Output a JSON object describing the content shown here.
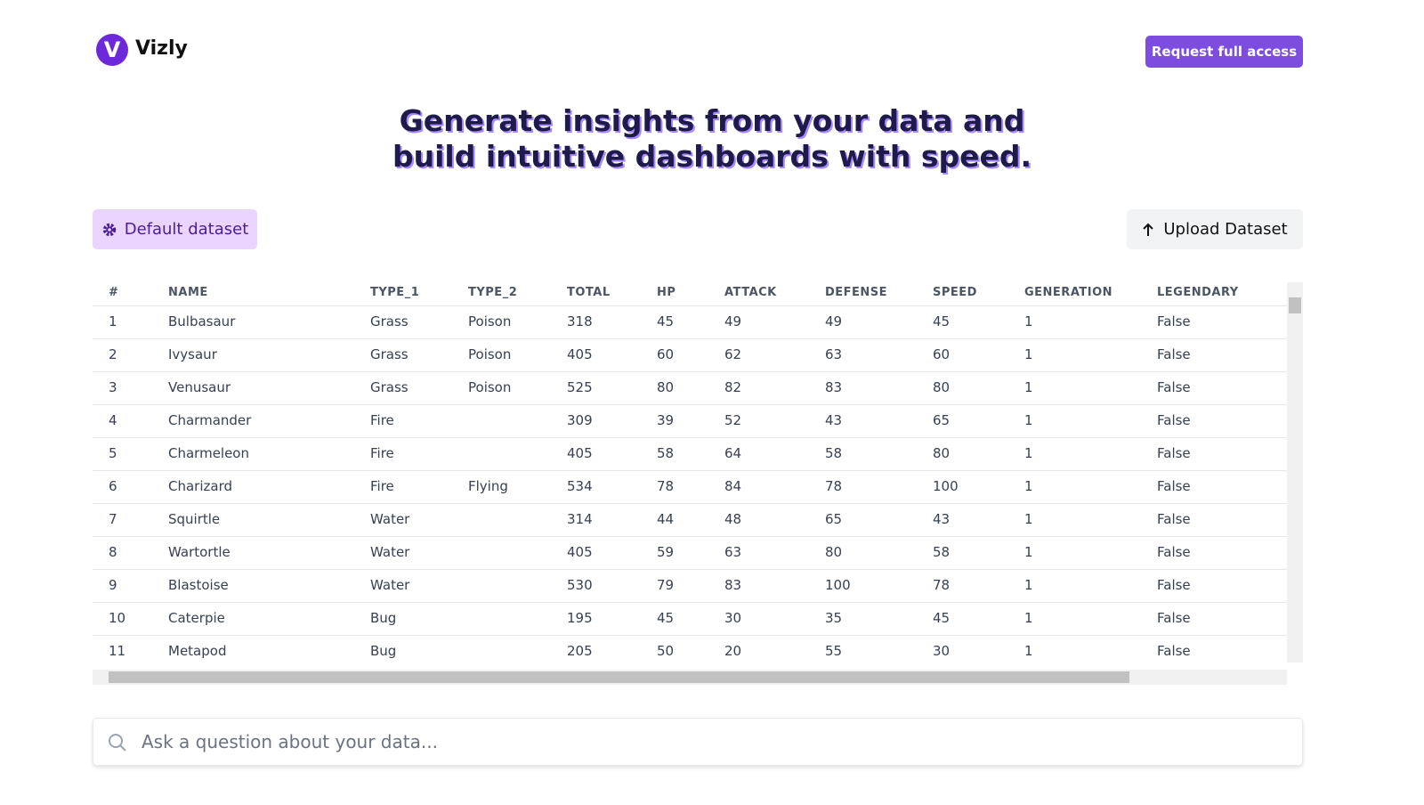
{
  "header": {
    "logo_letter": "V",
    "logo": "Vizly",
    "button": "Request full access"
  },
  "hero": {
    "title_line1": "Generate insights from your data and",
    "title_line2": "build intuitive dashboards with speed."
  },
  "toolbar": {
    "default_dataset": "Default dataset",
    "upload": "Upload Dataset"
  },
  "table": {
    "columns": [
      "#",
      "NAME",
      "TYPE_1",
      "TYPE_2",
      "TOTAL",
      "HP",
      "ATTACK",
      "DEFENSE",
      "SPEED",
      "GENERATION",
      "LEGENDARY"
    ],
    "rows": [
      [
        1,
        "Bulbasaur",
        "Grass",
        "Poison",
        318,
        45,
        49,
        49,
        45,
        1,
        "False"
      ],
      [
        2,
        "Ivysaur",
        "Grass",
        "Poison",
        405,
        60,
        62,
        63,
        60,
        1,
        "False"
      ],
      [
        3,
        "Venusaur",
        "Grass",
        "Poison",
        525,
        80,
        82,
        83,
        80,
        1,
        "False"
      ],
      [
        4,
        "Charmander",
        "Fire",
        null,
        309,
        39,
        52,
        43,
        65,
        1,
        "False"
      ],
      [
        5,
        "Charmeleon",
        "Fire",
        null,
        405,
        58,
        64,
        58,
        80,
        1,
        "False"
      ],
      [
        6,
        "Charizard",
        "Fire",
        "Flying",
        534,
        78,
        84,
        78,
        100,
        1,
        "False"
      ],
      [
        7,
        "Squirtle",
        "Water",
        null,
        314,
        44,
        48,
        65,
        43,
        1,
        "False"
      ],
      [
        8,
        "Wartortle",
        "Water",
        null,
        405,
        59,
        63,
        80,
        58,
        1,
        "False"
      ],
      [
        9,
        "Blastoise",
        "Water",
        null,
        530,
        79,
        83,
        100,
        78,
        1,
        "False"
      ],
      [
        10,
        "Caterpie",
        "Bug",
        null,
        195,
        45,
        30,
        35,
        45,
        1,
        "False"
      ],
      [
        11,
        "Metapod",
        "Bug",
        null,
        205,
        50,
        20,
        55,
        30,
        1,
        "False"
      ]
    ]
  },
  "search": {
    "placeholder": "Ask a question about your data..."
  }
}
